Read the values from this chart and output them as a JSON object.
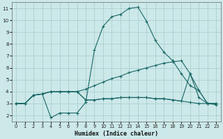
{
  "title": "",
  "xlabel": "Humidex (Indice chaleur)",
  "ylabel": "",
  "background_color": "#cce8e8",
  "grid_color": "#aacece",
  "line_color": "#1a6868",
  "xlim": [
    -0.5,
    23.5
  ],
  "ylim": [
    1.5,
    11.5
  ],
  "xticks": [
    0,
    1,
    2,
    3,
    4,
    5,
    6,
    7,
    8,
    9,
    10,
    11,
    12,
    13,
    14,
    15,
    16,
    17,
    18,
    19,
    20,
    21,
    22,
    23
  ],
  "yticks": [
    2,
    3,
    4,
    5,
    6,
    7,
    8,
    9,
    10,
    11
  ],
  "series": [
    [
      3.0,
      3.0,
      3.7,
      3.8,
      1.8,
      2.2,
      2.2,
      2.2,
      3.1,
      7.5,
      9.5,
      10.3,
      10.5,
      11.0,
      11.1,
      9.9,
      8.3,
      7.3,
      6.6,
      5.5,
      4.5,
      4.1,
      3.0,
      3.0
    ],
    [
      3.0,
      3.0,
      3.7,
      3.8,
      4.0,
      4.0,
      4.0,
      4.0,
      4.2,
      4.5,
      4.8,
      5.1,
      5.3,
      5.6,
      5.8,
      6.0,
      6.2,
      6.4,
      6.5,
      6.6,
      5.5,
      3.5,
      3.0,
      3.0
    ],
    [
      3.0,
      3.0,
      3.7,
      3.8,
      4.0,
      4.0,
      4.0,
      4.0,
      3.3,
      3.3,
      3.4,
      3.4,
      3.5,
      3.5,
      3.5,
      3.5,
      3.4,
      3.4,
      3.3,
      3.2,
      3.1,
      3.0,
      3.0,
      2.9
    ],
    [
      3.0,
      3.0,
      3.7,
      3.8,
      4.0,
      4.0,
      4.0,
      4.0,
      3.3,
      3.3,
      3.4,
      3.4,
      3.5,
      3.5,
      3.5,
      3.5,
      3.4,
      3.4,
      3.3,
      3.2,
      5.5,
      4.1,
      3.0,
      3.0
    ]
  ]
}
